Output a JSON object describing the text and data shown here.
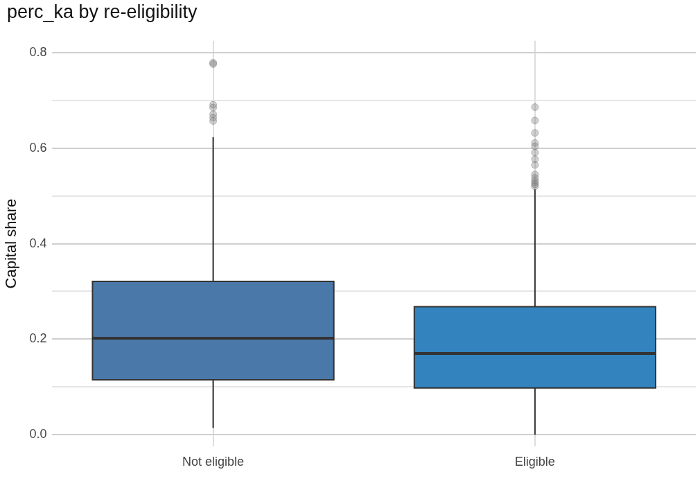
{
  "chart_data": {
    "type": "box",
    "title": "perc_ka by re-eligibility",
    "ylabel": "Capital share",
    "categories": [
      "Not eligible",
      "Eligible"
    ],
    "colors": [
      "#4a78a8",
      "#3384be"
    ],
    "boxes": [
      {
        "low": 0.014,
        "q1": 0.115,
        "median": 0.202,
        "q3": 0.321,
        "high": 0.623,
        "outliers": [
          0.779,
          0.776,
          0.691,
          0.685,
          0.671,
          0.664,
          0.657
        ]
      },
      {
        "low": 0.0,
        "q1": 0.098,
        "median": 0.17,
        "q3": 0.268,
        "high": 0.514,
        "outliers": [
          0.686,
          0.658,
          0.632,
          0.611,
          0.604,
          0.591,
          0.577,
          0.565,
          0.545,
          0.538,
          0.532,
          0.528,
          0.524,
          0.52
        ]
      }
    ],
    "ylim": [
      -0.025,
      0.825
    ],
    "yticks": [
      {
        "value": 0,
        "label": "0.0"
      },
      {
        "value": 0.1,
        "label": null
      },
      0.2,
      {
        "value": 0.3,
        "label": null
      },
      0.4,
      {
        "value": 0.5,
        "label": null
      },
      0.6,
      {
        "value": 0.7,
        "label": null
      },
      0.8
    ],
    "grid": true
  }
}
